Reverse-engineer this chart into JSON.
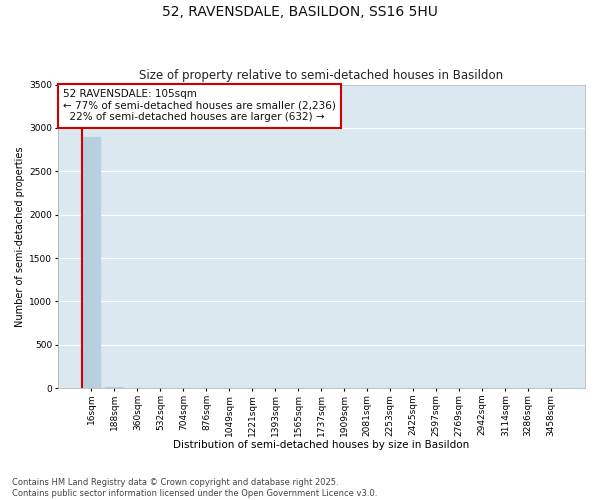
{
  "title": "52, RAVENSDALE, BASILDON, SS16 5HU",
  "subtitle": "Size of property relative to semi-detached houses in Basildon",
  "xlabel": "Distribution of semi-detached houses by size in Basildon",
  "ylabel": "Number of semi-detached properties",
  "categories": [
    "16sqm",
    "188sqm",
    "360sqm",
    "532sqm",
    "704sqm",
    "876sqm",
    "1049sqm",
    "1221sqm",
    "1393sqm",
    "1565sqm",
    "1737sqm",
    "1909sqm",
    "2081sqm",
    "2253sqm",
    "2425sqm",
    "2597sqm",
    "2769sqm",
    "2942sqm",
    "3114sqm",
    "3286sqm",
    "3458sqm"
  ],
  "bar_heights": [
    2890,
    15,
    0,
    0,
    0,
    0,
    0,
    0,
    0,
    0,
    0,
    0,
    0,
    0,
    0,
    0,
    0,
    0,
    0,
    0,
    0
  ],
  "bar_color": "#b8cfe0",
  "marker_color": "#cc0000",
  "marker_bar_index": 0,
  "ylim": [
    0,
    3500
  ],
  "yticks": [
    0,
    500,
    1000,
    1500,
    2000,
    2500,
    3000,
    3500
  ],
  "annotation_text": "52 RAVENSDALE: 105sqm\n← 77% of semi-detached houses are smaller (2,236)\n  22% of semi-detached houses are larger (632) →",
  "annotation_box_color": "#ffffff",
  "annotation_box_edge_color": "#cc0000",
  "background_color": "#dce8f0",
  "grid_color": "#ffffff",
  "figure_bg": "#ffffff",
  "footer_line1": "Contains HM Land Registry data © Crown copyright and database right 2025.",
  "footer_line2": "Contains public sector information licensed under the Open Government Licence v3.0.",
  "title_fontsize": 10,
  "subtitle_fontsize": 8.5,
  "xlabel_fontsize": 7.5,
  "ylabel_fontsize": 7,
  "tick_fontsize": 6.5,
  "annotation_fontsize": 7.5,
  "footer_fontsize": 6
}
